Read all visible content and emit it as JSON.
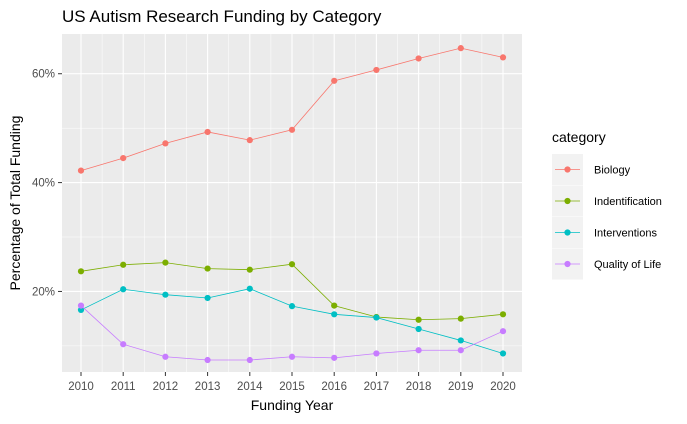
{
  "chart_data": {
    "type": "line",
    "title": "US Autism Research Funding by Category",
    "xlabel": "Funding Year",
    "ylabel": "Percentage of Total Funding",
    "x": [
      2010,
      2011,
      2012,
      2013,
      2014,
      2015,
      2016,
      2017,
      2018,
      2019,
      2020
    ],
    "xlim": [
      2009.55,
      2020.45
    ],
    "ylim": [
      5.2,
      67.3
    ],
    "yticks": [
      20,
      40,
      60
    ],
    "ytick_labels": [
      "20%",
      "40%",
      "60%"
    ],
    "grid": true,
    "legend": {
      "title": "category",
      "placement": "right"
    },
    "series": [
      {
        "name": "Biology",
        "color": "#F8766D",
        "values": [
          42.2,
          44.5,
          47.2,
          49.3,
          47.8,
          49.7,
          58.7,
          60.7,
          62.8,
          64.7,
          63.0
        ]
      },
      {
        "name": "Indentification",
        "color": "#7CAE00",
        "values": [
          23.7,
          24.9,
          25.3,
          24.2,
          24.0,
          25.0,
          17.4,
          15.3,
          14.8,
          15.0,
          15.8
        ]
      },
      {
        "name": "Interventions",
        "color": "#00BFC4",
        "values": [
          16.6,
          20.4,
          19.4,
          18.8,
          20.5,
          17.3,
          15.8,
          15.2,
          13.1,
          11.0,
          8.6
        ]
      },
      {
        "name": "Quality of Life",
        "color": "#C77CFF",
        "values": [
          17.4,
          10.3,
          8.0,
          7.4,
          7.4,
          8.0,
          7.8,
          8.6,
          9.2,
          9.2,
          12.7
        ]
      }
    ]
  }
}
